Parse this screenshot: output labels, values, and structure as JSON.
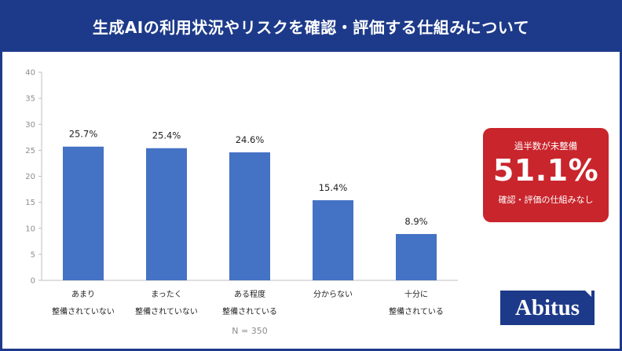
{
  "title": "生成AIの利用状況やリスクを確認・評価する仕組みについて",
  "chart_data": {
    "type": "bar",
    "categories": [
      [
        "あまり",
        "整備されていない"
      ],
      [
        "まったく",
        "整備されていない"
      ],
      [
        "ある程度",
        "整備されている"
      ],
      [
        "分からない"
      ],
      [
        "十分に",
        "整備されている"
      ]
    ],
    "values": [
      25.7,
      25.4,
      24.6,
      15.4,
      8.9
    ],
    "value_labels": [
      "25.7%",
      "25.4%",
      "24.6%",
      "15.4%",
      "8.9%"
    ],
    "ylim": [
      0,
      40
    ],
    "yticks": [
      0,
      5,
      10,
      15,
      20,
      25,
      30,
      35,
      40
    ],
    "grid": false,
    "bar_color": "#4472c4",
    "note": "N = 350"
  },
  "callout": {
    "top_text": "過半数が未整備",
    "big_value": "51.1%",
    "bottom_text": "確認・評価の仕組みなし",
    "color": "#c9252c"
  },
  "logo": {
    "text": "Abitus",
    "color": "#1d3a8a"
  }
}
